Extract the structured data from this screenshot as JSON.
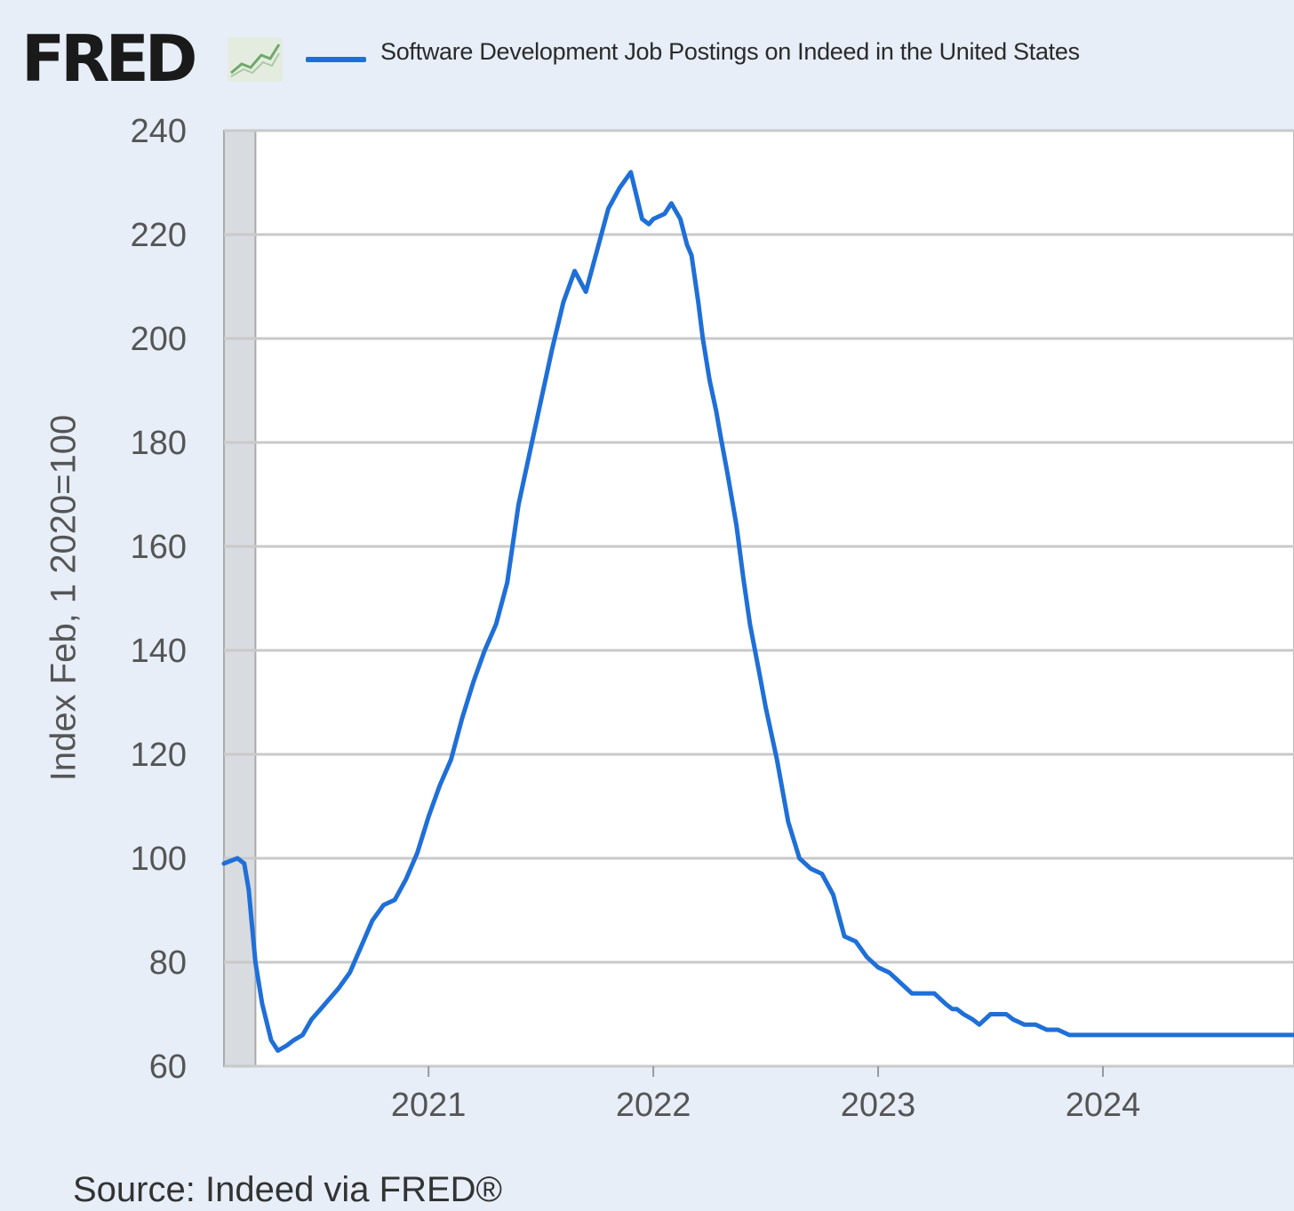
{
  "header": {
    "logo_text": "FRED",
    "logo_icon": "trend-chart-icon",
    "legend_label": "Software Development Job Postings on Indeed in the United States"
  },
  "colors": {
    "series": "#1f6fd8",
    "recession_band": "#d8dbe0",
    "grid": "#c9c9c9",
    "plot_bg": "#ffffff",
    "page_bg": "#e7eef8"
  },
  "source_text": "Source: Indeed via FRED®",
  "chart_data": {
    "type": "line",
    "title": "",
    "xlabel": "",
    "ylabel": "Index Feb, 1 2020=100",
    "ylim": [
      60,
      240
    ],
    "yticks": [
      60,
      80,
      100,
      120,
      140,
      160,
      180,
      200,
      220,
      240
    ],
    "xlim": [
      2020.09,
      2024.85
    ],
    "xticks": [
      "2021",
      "2022",
      "2023",
      "2024"
    ],
    "grid": true,
    "recession_shading": [
      2020.09,
      2020.23
    ],
    "series": [
      {
        "name": "Software Development Job Postings on Indeed in the United States",
        "x": [
          2020.09,
          2020.12,
          2020.15,
          2020.18,
          2020.2,
          2020.23,
          2020.26,
          2020.3,
          2020.33,
          2020.37,
          2020.4,
          2020.44,
          2020.48,
          2020.52,
          2020.56,
          2020.6,
          2020.65,
          2020.7,
          2020.75,
          2020.8,
          2020.85,
          2020.9,
          2020.95,
          2021.0,
          2021.05,
          2021.1,
          2021.15,
          2021.2,
          2021.25,
          2021.3,
          2021.35,
          2021.4,
          2021.45,
          2021.5,
          2021.55,
          2021.6,
          2021.65,
          2021.7,
          2021.75,
          2021.8,
          2021.85,
          2021.9,
          2021.95,
          2021.98,
          2022.0,
          2022.05,
          2022.08,
          2022.12,
          2022.15,
          2022.17,
          2022.2,
          2022.22,
          2022.25,
          2022.28,
          2022.3,
          2022.33,
          2022.37,
          2022.4,
          2022.43,
          2022.47,
          2022.5,
          2022.55,
          2022.6,
          2022.65,
          2022.7,
          2022.75,
          2022.8,
          2022.85,
          2022.9,
          2022.95,
          2023.0,
          2023.05,
          2023.1,
          2023.15,
          2023.2,
          2023.25,
          2023.3,
          2023.33,
          2023.35,
          2023.38,
          2023.42,
          2023.45,
          2023.5,
          2023.55,
          2023.57,
          2023.6,
          2023.65,
          2023.7,
          2023.75,
          2023.8,
          2023.85,
          2023.9,
          2023.95,
          2024.0,
          2024.05,
          2024.1,
          2024.15,
          2024.2,
          2024.25,
          2024.3,
          2024.35,
          2024.38,
          2024.4,
          2024.45,
          2024.5,
          2024.55,
          2024.6,
          2024.65,
          2024.7,
          2024.75,
          2024.8,
          2024.85
        ],
        "values": [
          99,
          99.5,
          100,
          99,
          94,
          80,
          72,
          65,
          63,
          64,
          65,
          66,
          69,
          71,
          73,
          75,
          78,
          83,
          88,
          91,
          92,
          96,
          101,
          108,
          114,
          119,
          127,
          134,
          140,
          145,
          153,
          168,
          178,
          188,
          198,
          207,
          213,
          209,
          217,
          225,
          229,
          232,
          223,
          222,
          223,
          224,
          226,
          223,
          218,
          216,
          207,
          200,
          192,
          186,
          181,
          174,
          164,
          154,
          145,
          136,
          129,
          119,
          107,
          100,
          98,
          97,
          93,
          85,
          84,
          81,
          79,
          78,
          76,
          74,
          74,
          74,
          72,
          71,
          71,
          70,
          69,
          68,
          70,
          70,
          70,
          69,
          68,
          68,
          67,
          67,
          66,
          66,
          66,
          66,
          66,
          66,
          66,
          66,
          66,
          66,
          66,
          66,
          66,
          66,
          66,
          66,
          66,
          66,
          66,
          66,
          66,
          66
        ]
      }
    ]
  }
}
